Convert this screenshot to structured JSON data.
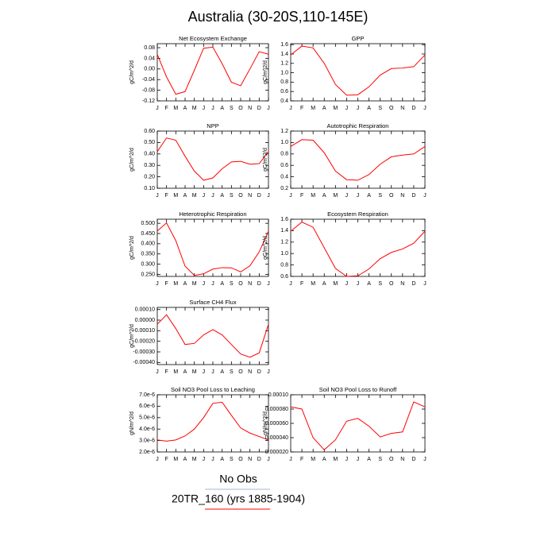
{
  "title": "Australia (30-20S,110-145E)",
  "legend": [
    {
      "label": "No Obs",
      "color": "#aab0e0"
    },
    {
      "label": "20TR_160 (yrs 1885-1904)",
      "color": "#ff0000"
    }
  ],
  "chart_data": [
    {
      "type": "line",
      "title": "Net Ecosystem Exchange",
      "ylabel": "gC/m^2/d",
      "categories": [
        "J",
        "F",
        "M",
        "A",
        "M",
        "J",
        "J",
        "A",
        "S",
        "O",
        "N",
        "D",
        "J"
      ],
      "series": [
        {
          "color": "#ff0000",
          "values": [
            0.055,
            -0.03,
            -0.095,
            -0.085,
            -0.005,
            0.078,
            0.082,
            0.02,
            -0.05,
            -0.063,
            0.0,
            0.065,
            0.055
          ]
        }
      ],
      "ylim": [
        -0.12,
        0.095
      ],
      "yticks": [
        -0.12,
        -0.08,
        -0.04,
        {
          "value": 0,
          "label": "0.00"
        },
        0.04,
        0.08
      ]
    },
    {
      "type": "line",
      "title": "GPP",
      "ylabel": "gC/m^2/d",
      "categories": [
        "J",
        "F",
        "M",
        "A",
        "M",
        "J",
        "J",
        "A",
        "S",
        "O",
        "N",
        "D",
        "J"
      ],
      "series": [
        {
          "color": "#ff0000",
          "values": [
            1.38,
            1.57,
            1.53,
            1.2,
            0.75,
            0.52,
            0.53,
            0.7,
            0.95,
            1.09,
            1.1,
            1.13,
            1.38
          ]
        }
      ],
      "ylim": [
        0.4,
        1.62
      ],
      "yticks": [
        0.4,
        0.6,
        0.8,
        {
          "value": 1,
          "label": "1.0"
        },
        1.2,
        1.4,
        1.6
      ]
    },
    {
      "type": "line",
      "title": "NPP",
      "ylabel": "gC/m^2/d",
      "categories": [
        "J",
        "F",
        "M",
        "A",
        "M",
        "J",
        "J",
        "A",
        "S",
        "O",
        "N",
        "D",
        "J"
      ],
      "series": [
        {
          "color": "#ff0000",
          "values": [
            0.42,
            0.54,
            0.52,
            0.38,
            0.25,
            0.17,
            0.19,
            0.27,
            0.33,
            0.335,
            0.31,
            0.315,
            0.42
          ]
        }
      ],
      "ylim": [
        0.1,
        0.6
      ],
      "yticks": [
        {
          "value": 0.1,
          "label": "0.10"
        },
        {
          "value": 0.2,
          "label": "0.20"
        },
        {
          "value": 0.3,
          "label": "0.30"
        },
        {
          "value": 0.4,
          "label": "0.40"
        },
        {
          "value": 0.5,
          "label": "0.50"
        },
        {
          "value": 0.6,
          "label": "0.60"
        }
      ]
    },
    {
      "type": "line",
      "title": "Autotrophic Respiration",
      "ylabel": "gC/m^2/d",
      "categories": [
        "J",
        "F",
        "M",
        "A",
        "M",
        "J",
        "J",
        "A",
        "S",
        "O",
        "N",
        "D",
        "J"
      ],
      "series": [
        {
          "color": "#ff0000",
          "values": [
            0.93,
            1.05,
            1.04,
            0.82,
            0.5,
            0.35,
            0.34,
            0.44,
            0.62,
            0.75,
            0.78,
            0.8,
            0.93
          ]
        }
      ],
      "ylim": [
        0.2,
        1.2
      ],
      "yticks": [
        0.2,
        0.4,
        0.6,
        0.8,
        {
          "value": 1,
          "label": "1.0"
        },
        1.2
      ]
    },
    {
      "type": "line",
      "title": "Heterotrophic Respiration",
      "ylabel": "gC/m^2/d",
      "categories": [
        "J",
        "F",
        "M",
        "A",
        "M",
        "J",
        "J",
        "A",
        "S",
        "O",
        "N",
        "D",
        "J"
      ],
      "series": [
        {
          "color": "#ff0000",
          "values": [
            0.462,
            0.502,
            0.415,
            0.29,
            0.245,
            0.253,
            0.276,
            0.283,
            0.282,
            0.262,
            0.292,
            0.36,
            0.462
          ]
        }
      ],
      "ylim": [
        0.24,
        0.52
      ],
      "yticks": [
        {
          "value": 0.25,
          "label": "0.250"
        },
        {
          "value": 0.3,
          "label": "0.300"
        },
        {
          "value": 0.35,
          "label": "0.350"
        },
        {
          "value": 0.4,
          "label": "0.400"
        },
        {
          "value": 0.45,
          "label": "0.450"
        },
        {
          "value": 0.5,
          "label": "0.500"
        }
      ]
    },
    {
      "type": "line",
      "title": "Ecosystem Respiration",
      "ylabel": "gC/m^2/d",
      "categories": [
        "J",
        "F",
        "M",
        "A",
        "M",
        "J",
        "J",
        "A",
        "S",
        "O",
        "N",
        "D",
        "J"
      ],
      "series": [
        {
          "color": "#ff0000",
          "values": [
            1.39,
            1.55,
            1.46,
            1.1,
            0.74,
            0.6,
            0.61,
            0.73,
            0.91,
            1.02,
            1.08,
            1.18,
            1.39
          ]
        }
      ],
      "ylim": [
        0.6,
        1.6
      ],
      "yticks": [
        0.6,
        0.8,
        {
          "value": 1,
          "label": "1.0"
        },
        1.2,
        1.4,
        1.6
      ]
    },
    {
      "type": "line",
      "title": "Surface CH4 Flux",
      "ylabel": "gC/m^2/d",
      "categories": [
        "J",
        "F",
        "M",
        "A",
        "M",
        "J",
        "J",
        "A",
        "S",
        "O",
        "N",
        "D",
        "J"
      ],
      "series": [
        {
          "color": "#ff0000",
          "values": [
            -4e-05,
            5e-05,
            -8e-05,
            -0.00023,
            -0.00022,
            -0.00014,
            -9e-05,
            -0.00014,
            -0.00023,
            -0.00032,
            -0.00035,
            -0.00031,
            -4e-05
          ]
        }
      ],
      "ylim": [
        -0.00042,
        0.00012
      ],
      "yticks": [
        {
          "value": -0.0004,
          "label": "-0.00040"
        },
        {
          "value": -0.0003,
          "label": "-0.00030"
        },
        {
          "value": -0.0002,
          "label": "-0.00020"
        },
        {
          "value": -0.0001,
          "label": "-0.00010"
        },
        {
          "value": 0,
          "label": "0.00000"
        },
        {
          "value": 0.0001,
          "label": "0.00010"
        }
      ]
    },
    {
      "type": "line",
      "title": "Soil NO3 Pool Loss to Leaching",
      "ylabel": "gN/m^2/d",
      "categories": [
        "J",
        "F",
        "M",
        "A",
        "M",
        "J",
        "J",
        "A",
        "S",
        "O",
        "N",
        "D",
        "J"
      ],
      "series": [
        {
          "color": "#ff0000",
          "values": [
            3.05e-06,
            2.95e-06,
            3.05e-06,
            3.4e-06,
            4e-06,
            5e-06,
            6.25e-06,
            6.35e-06,
            5.2e-06,
            4.1e-06,
            3.65e-06,
            3.35e-06,
            3.05e-06
          ]
        }
      ],
      "ylim": [
        2e-06,
        7e-06
      ],
      "yticks": [
        {
          "value": 2e-06,
          "label": "2.0e-6"
        },
        {
          "value": 3e-06,
          "label": "3.0e-6"
        },
        {
          "value": 4e-06,
          "label": "4.0e-6"
        },
        {
          "value": 5e-06,
          "label": "5.0e-6"
        },
        {
          "value": 6e-06,
          "label": "6.0e-6"
        },
        {
          "value": 7e-06,
          "label": "7.0e-6"
        }
      ]
    },
    {
      "type": "line",
      "title": "Soil NO3 Pool Loss to Runoff",
      "ylabel": "gN/m^2/d",
      "categories": [
        "J",
        "F",
        "M",
        "A",
        "M",
        "J",
        "J",
        "A",
        "S",
        "O",
        "N",
        "D",
        "J"
      ],
      "series": [
        {
          "color": "#ff0000",
          "values": [
            8.3e-05,
            8e-05,
            4e-05,
            2.3e-05,
            3.7e-05,
            6.3e-05,
            6.7e-05,
            5.6e-05,
            4.1e-05,
            4.6e-05,
            4.8e-05,
            9e-05,
            8.3e-05
          ]
        }
      ],
      "ylim": [
        2e-05,
        0.0001
      ],
      "yticks": [
        {
          "value": 2e-05,
          "label": "0.000020"
        },
        {
          "value": 4e-05,
          "label": "0.000040"
        },
        {
          "value": 6e-05,
          "label": "0.000060"
        },
        {
          "value": 8e-05,
          "label": "0.000080"
        },
        {
          "value": 0.0001,
          "label": "0.00010"
        }
      ]
    }
  ]
}
